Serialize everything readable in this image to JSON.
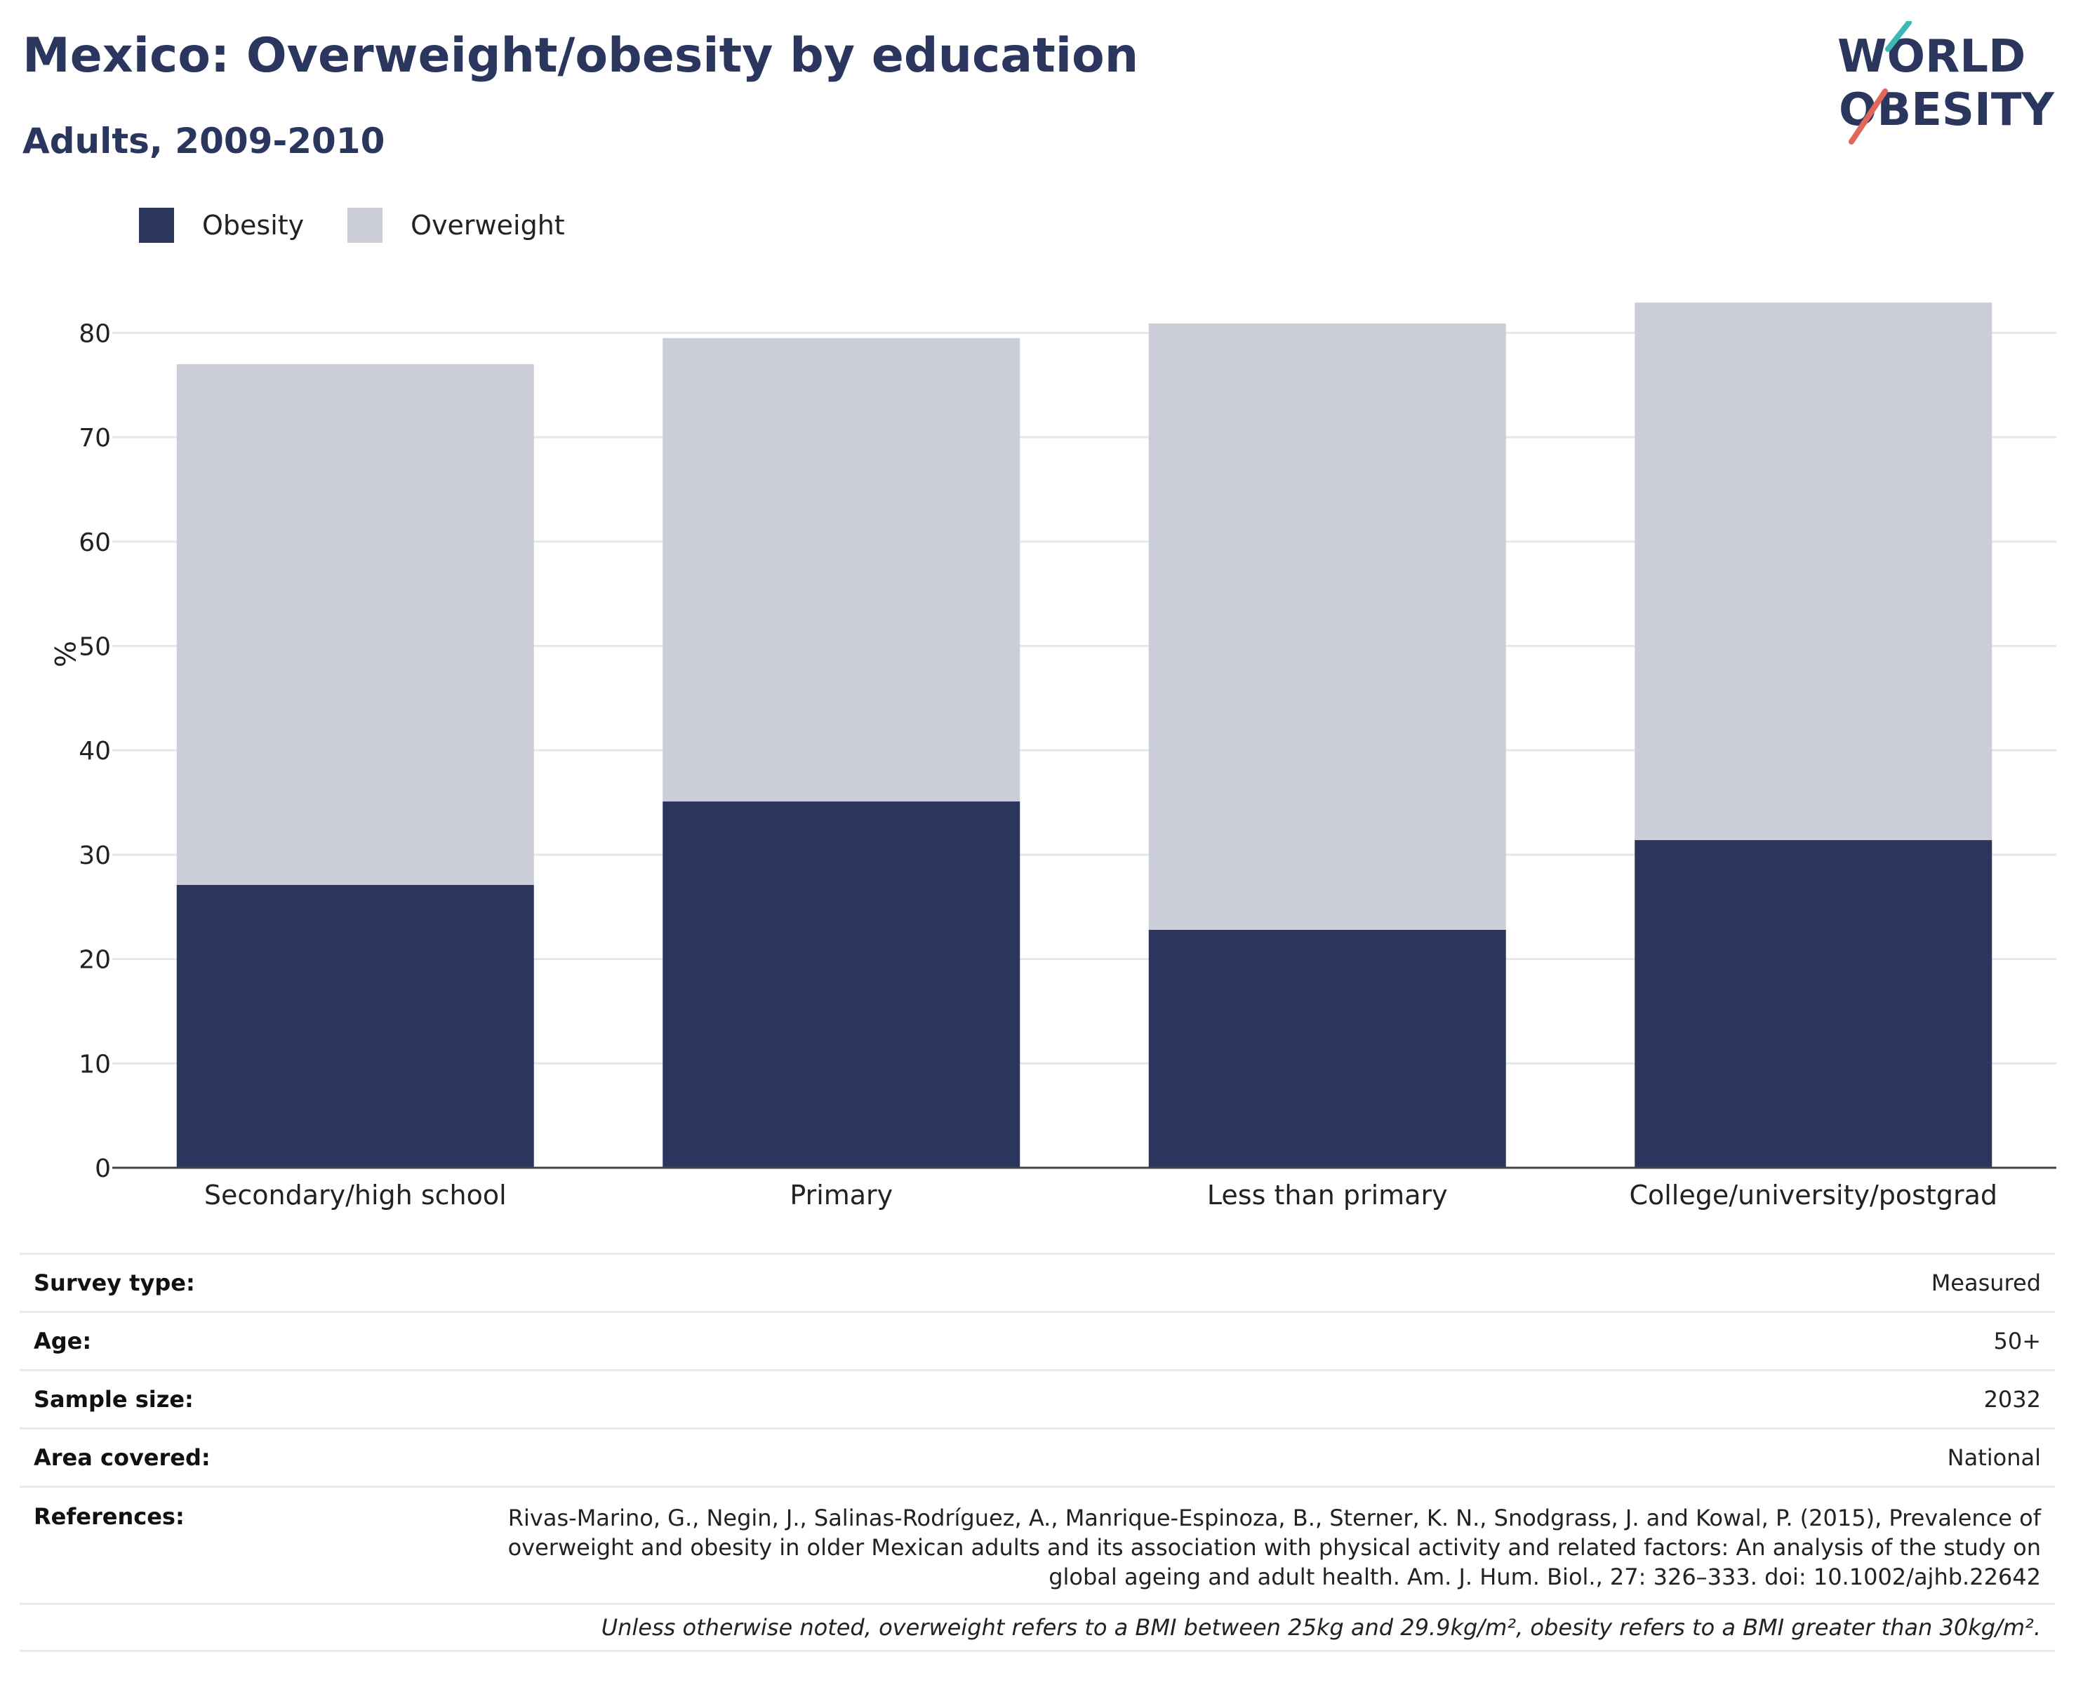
{
  "header": {
    "title": "Mexico: Overweight/obesity by education",
    "subtitle": "Adults, 2009-2010"
  },
  "logo": {
    "line1": "WORLD",
    "line2": "OBESITY"
  },
  "colors": {
    "obesity": "#2b365f",
    "overweight": "#cbcdd8",
    "brand": "#2b365f",
    "accent_teal": "#3fb7b4",
    "accent_coral": "#e2675a"
  },
  "chart_data": {
    "type": "bar",
    "stacked": true,
    "categories": [
      "Secondary/high school",
      "Primary",
      "Less than primary",
      "College/university/postgrad"
    ],
    "series": [
      {
        "name": "Obesity",
        "values": [
          27.1,
          35.1,
          22.8,
          31.4
        ]
      },
      {
        "name": "Overweight",
        "values": [
          49.9,
          44.4,
          58.1,
          51.5
        ]
      }
    ],
    "totals": [
      77.0,
      79.5,
      80.9,
      82.9
    ],
    "ylabel": "%",
    "ylim": [
      0,
      85
    ],
    "yticks": [
      0,
      10,
      20,
      30,
      40,
      50,
      60,
      70,
      80
    ],
    "grid": true,
    "legend_position": "top-left"
  },
  "info": {
    "survey_type": {
      "label": "Survey type:",
      "value": "Measured"
    },
    "age": {
      "label": "Age:",
      "value": "50+"
    },
    "sample_size": {
      "label": "Sample size:",
      "value": "2032"
    },
    "area": {
      "label": "Area covered:",
      "value": "National"
    },
    "references": {
      "label": "References:",
      "lines": [
        "Rivas-Marino, G., Negin, J., Salinas-Rodríguez, A., Manrique-Espinoza, B., Sterner, K. N., Snodgrass, J. and Kowal, P. (2015), Prevalence of",
        "overweight and obesity in older Mexican adults and its association with physical activity and related factors: An analysis of the study on",
        "global ageing and adult health. Am. J. Hum. Biol., 27: 326–333. doi: 10.1002/ajhb.22642"
      ]
    },
    "note": "Unless otherwise noted, overweight refers to a BMI between 25kg and 29.9kg/m², obesity refers to a BMI greater than 30kg/m²."
  }
}
